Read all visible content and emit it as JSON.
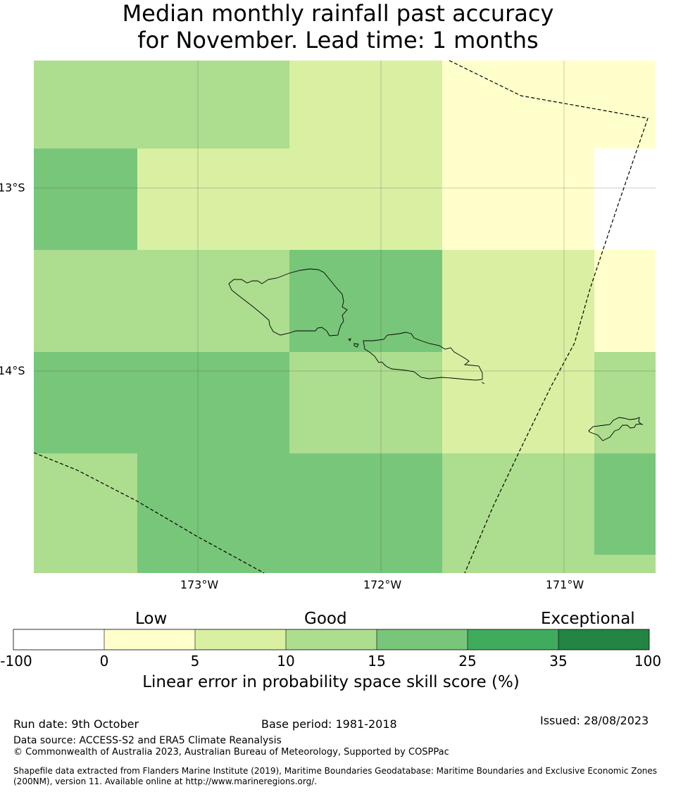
{
  "title": {
    "line1": "Median monthly rainfall past accuracy",
    "line2": "for November. Lead time: 1 months"
  },
  "map": {
    "lat_labels": [
      "13°S",
      "14°S"
    ],
    "lon_labels": [
      "173°W",
      "172°W",
      "171°W"
    ],
    "cells": [
      {
        "skill_bin": "10-15"
      },
      {
        "skill_bin": "5-10"
      },
      {
        "skill_bin": "0-5"
      },
      {
        "skill_bin": "15-25"
      },
      {
        "skill_bin": "5-10"
      },
      {
        "skill_bin": "0-5"
      },
      {
        "skill_bin": "-100-0"
      },
      {
        "skill_bin": "10-15"
      },
      {
        "skill_bin": "15-25"
      },
      {
        "skill_bin": "5-10"
      },
      {
        "skill_bin": "0-5"
      },
      {
        "skill_bin": "15-25"
      },
      {
        "skill_bin": "10-15"
      },
      {
        "skill_bin": "5-10"
      },
      {
        "skill_bin": "10-15"
      },
      {
        "skill_bin": "10-15"
      },
      {
        "skill_bin": "15-25"
      },
      {
        "skill_bin": "10-15"
      },
      {
        "skill_bin": "15-25"
      }
    ]
  },
  "colorbar": {
    "headers": [
      "Low",
      "Good",
      "Exceptional"
    ],
    "ticks": [
      "-100",
      "0",
      "5",
      "10",
      "15",
      "25",
      "35",
      "100"
    ],
    "colors": [
      "#ffffff",
      "#ffffcc",
      "#d9f0a3",
      "#addd8e",
      "#78c679",
      "#41ab5d",
      "#238443"
    ],
    "caption": "Linear error in probability space skill score (%)"
  },
  "footer": {
    "run_date": "Run date: 9th October",
    "base_period": "Base period: 1981-2018",
    "issued": "Issued: 28/08/2023",
    "data_source": "Data source: ACCESS-S2 and ERA5 Climate Reanalysis",
    "copyright": "© Commonwealth of Australia 2023, Australian Bureau of Meteorology, Supported by COSPPac",
    "shapefile_line1": "Shapefile data extracted from Flanders Marine Institute (2019), Maritime Boundaries Geodatabase: Maritime Boundaries and Exclusive Economic Zones",
    "shapefile_line2": "(200NM), version 11. Available online at http://www.marineregions.org/."
  }
}
